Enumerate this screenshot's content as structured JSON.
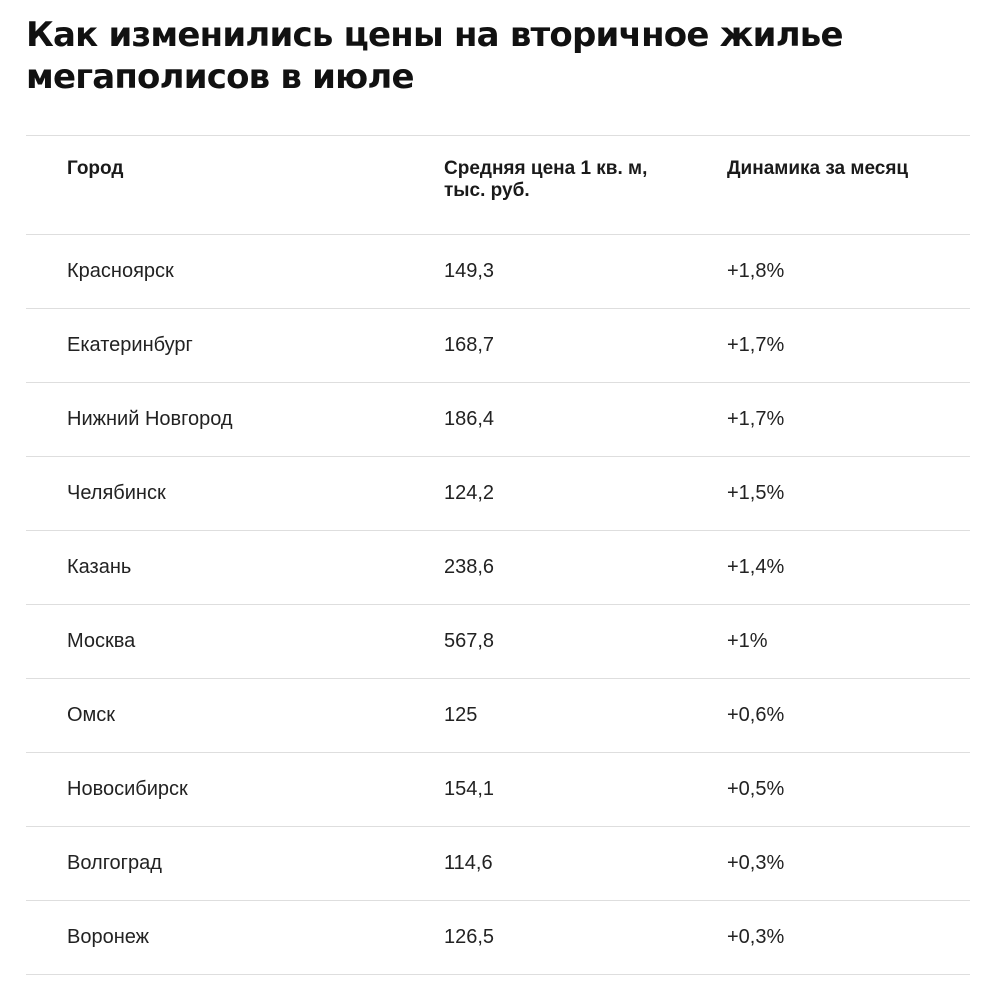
{
  "title": "Как изменились цены на вторичное жилье мегаполисов в июле",
  "table": {
    "headers": {
      "city": "Город",
      "price": "Средняя цена 1 кв. м, тыс. руб.",
      "dynamics": "Динамика за месяц"
    },
    "rows": [
      {
        "city": "Красноярск",
        "price": "149,3",
        "dynamics": "+1,8%"
      },
      {
        "city": "Екатеринбург",
        "price": "168,7",
        "dynamics": "+1,7%"
      },
      {
        "city": "Нижний Новгород",
        "price": "186,4",
        "dynamics": "+1,7%"
      },
      {
        "city": "Челябинск",
        "price": "124,2",
        "dynamics": "+1,5%"
      },
      {
        "city": "Казань",
        "price": "238,6",
        "dynamics": "+1,4%"
      },
      {
        "city": "Москва",
        "price": "567,8",
        "dynamics": "+1%"
      },
      {
        "city": "Омск",
        "price": "125",
        "dynamics": "+0,6%"
      },
      {
        "city": "Новосибирск",
        "price": "154,1",
        "dynamics": "+0,5%"
      },
      {
        "city": "Волгоград",
        "price": "114,6",
        "dynamics": "+0,3%"
      },
      {
        "city": "Воронеж",
        "price": "126,5",
        "dynamics": "+0,3%"
      }
    ]
  }
}
